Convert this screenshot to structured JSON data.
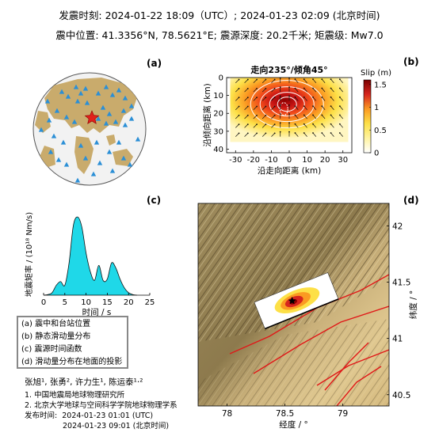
{
  "header": {
    "line1": "发震时刻: 2024-01-22 18:09（UTC）;   2024-01-23  02:09 (北京时间)",
    "line2": "震中位置: 41.3356°N,  78.5621°E;   震源深度: 20.2千米; 矩震级: Mw7.0"
  },
  "panels": {
    "a": "(a)",
    "b": "(b)",
    "c": "(c)",
    "d": "(d)"
  },
  "legend": [
    "(a) 震中和台站位置",
    "(b) 静态滑动量分布",
    "(c) 震源时间函数",
    "(d) 滑动量分布在地面的投影"
  ],
  "credits": {
    "authors": "张旭¹, 张勇², 许力生¹, 陈运泰¹·²",
    "aff1": "1. 中国地震局地球物理研究所",
    "aff2": "2. 北京大学地球与空间科学学院地球物理学系",
    "release_label": "发布时间:",
    "release_utc": "2024-01-23  01:01 (UTC)",
    "release_bj": "2024-01-23  09:01 (北京时间)"
  },
  "colors": {
    "station": "#2b8fd6",
    "star": "#e0201b",
    "land": "#c9ab6c",
    "stf_fill": "#1fd8e8"
  },
  "chart_data": [
    {
      "type": "scatter",
      "panel": "a",
      "description_shown": "stations",
      "stations_count_shown": 44
    },
    {
      "type": "heatmap",
      "panel": "b",
      "title": "走向235°/倾角45°",
      "xlabel": "沿走向距离 (km)",
      "ylabel": "沿倾向距离 (km)",
      "xticks": [
        -30,
        -20,
        -10,
        0,
        10,
        20,
        30
      ],
      "yticks": [
        0,
        10,
        20,
        30,
        40
      ],
      "xlim": [
        -35,
        35
      ],
      "ylim": [
        0,
        42
      ],
      "colorbar": {
        "label": "Slip (m)",
        "ticks": [
          0,
          0.5,
          1,
          1.5
        ],
        "range": [
          0,
          1.6
        ]
      },
      "peak_slip": 1.6,
      "peak_location": [
        -3,
        14
      ]
    },
    {
      "type": "area",
      "panel": "c",
      "xlabel": "时间 / s",
      "ylabel": "地震矩率 / (10¹⁸ Nm/s)",
      "xticks": [
        0,
        5,
        10,
        15,
        20,
        25
      ],
      "xlim": [
        0,
        25
      ],
      "ylim": [
        0,
        7.2
      ],
      "x": [
        0,
        1,
        2,
        3,
        4,
        5,
        6,
        7,
        8,
        9,
        10,
        11,
        12,
        13,
        14,
        15,
        16,
        17,
        18,
        19,
        20,
        21,
        22
      ],
      "y": [
        0,
        0.05,
        0.2,
        0.8,
        1.1,
        0.8,
        2.6,
        5.6,
        6.3,
        5.5,
        3.4,
        1.9,
        1.2,
        2.4,
        1.2,
        1.3,
        2.6,
        2.2,
        1.3,
        0.6,
        0.2,
        0.05,
        0
      ]
    },
    {
      "type": "scatter",
      "panel": "d",
      "xlabel": "经度 / °",
      "ylabel": "纬度 / °",
      "xticks": [
        78,
        78.5,
        79
      ],
      "yticks": [
        40.5,
        41,
        41.5,
        42
      ],
      "xlim": [
        77.75,
        79.4
      ],
      "ylim": [
        40.4,
        42.2
      ],
      "epicenter": {
        "lon": 78.5621,
        "lat": 41.3356
      }
    }
  ]
}
